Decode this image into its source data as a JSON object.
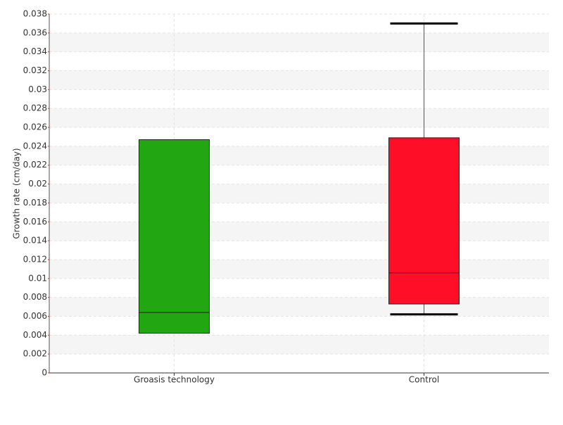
{
  "chart_data": {
    "type": "box",
    "y_label": "Growth rate (cm/day)",
    "categories": [
      "Groasis technology",
      "Control"
    ],
    "boxes": [
      {
        "min": 0.0042,
        "q1": 0.0042,
        "median": 0.0064,
        "q3": 0.0247,
        "max": 0.0247,
        "color": "#22a612"
      },
      {
        "min": 0.0062,
        "q1": 0.0073,
        "median": 0.0106,
        "q3": 0.0249,
        "max": 0.037,
        "color": "#ff0f27"
      }
    ],
    "ylim": [
      0,
      0.038
    ],
    "yticks": [
      0,
      0.002,
      0.004,
      0.006,
      0.008,
      0.01,
      0.012,
      0.014,
      0.016,
      0.018,
      0.02,
      0.022,
      0.024,
      0.026,
      0.028,
      0.03,
      0.032,
      0.034,
      0.036,
      0.038
    ],
    "grid": true
  }
}
